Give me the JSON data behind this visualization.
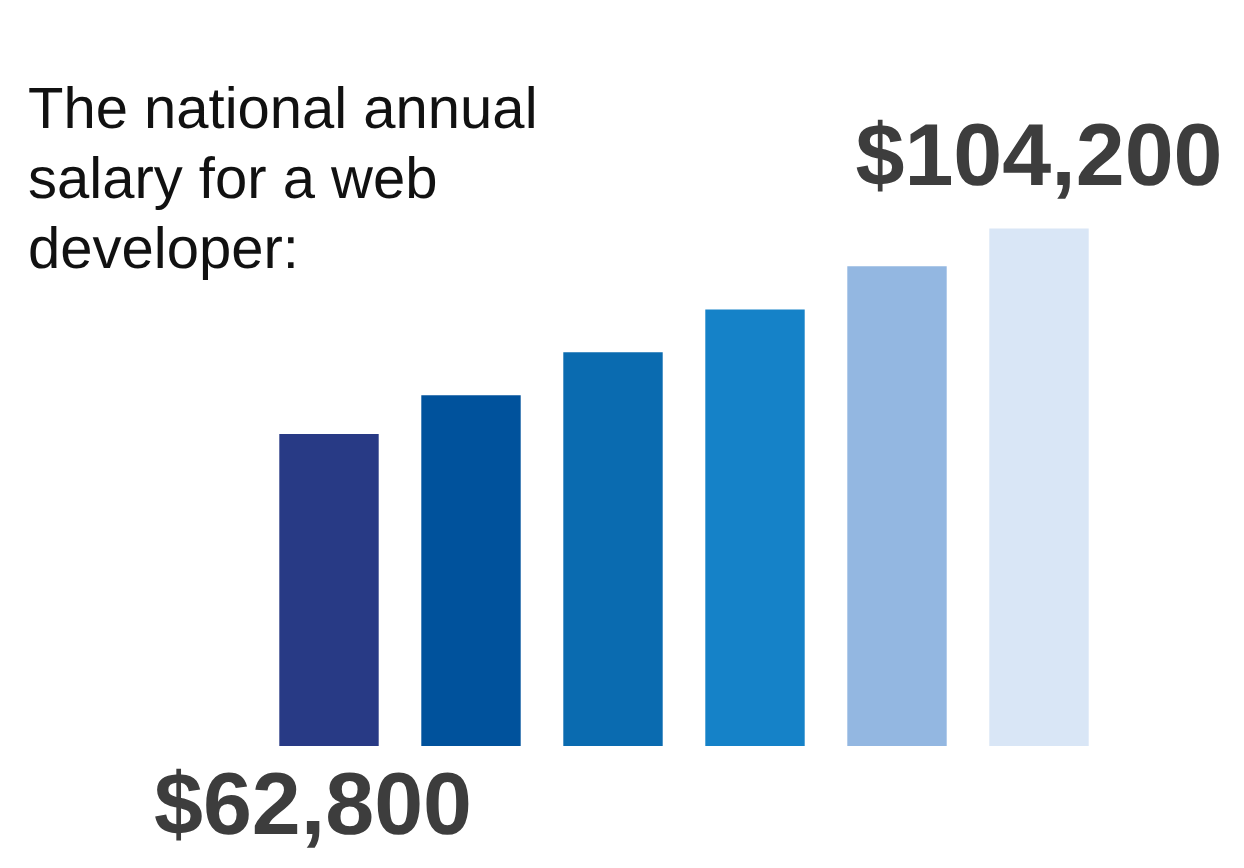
{
  "chart_data": {
    "type": "bar",
    "title": "The national annual salary for a web developer:",
    "categories": [
      null,
      null,
      null,
      null,
      null,
      null
    ],
    "values": [
      62800,
      70600,
      79300,
      87900,
      96600,
      104200
    ],
    "colors": [
      "#283a85",
      "#00529c",
      "#0a6bb0",
      "#1582c8",
      "#93b7e1",
      "#d9e6f6"
    ],
    "value_labels": [
      "$62,800",
      null,
      null,
      null,
      null,
      "$104,200"
    ]
  }
}
